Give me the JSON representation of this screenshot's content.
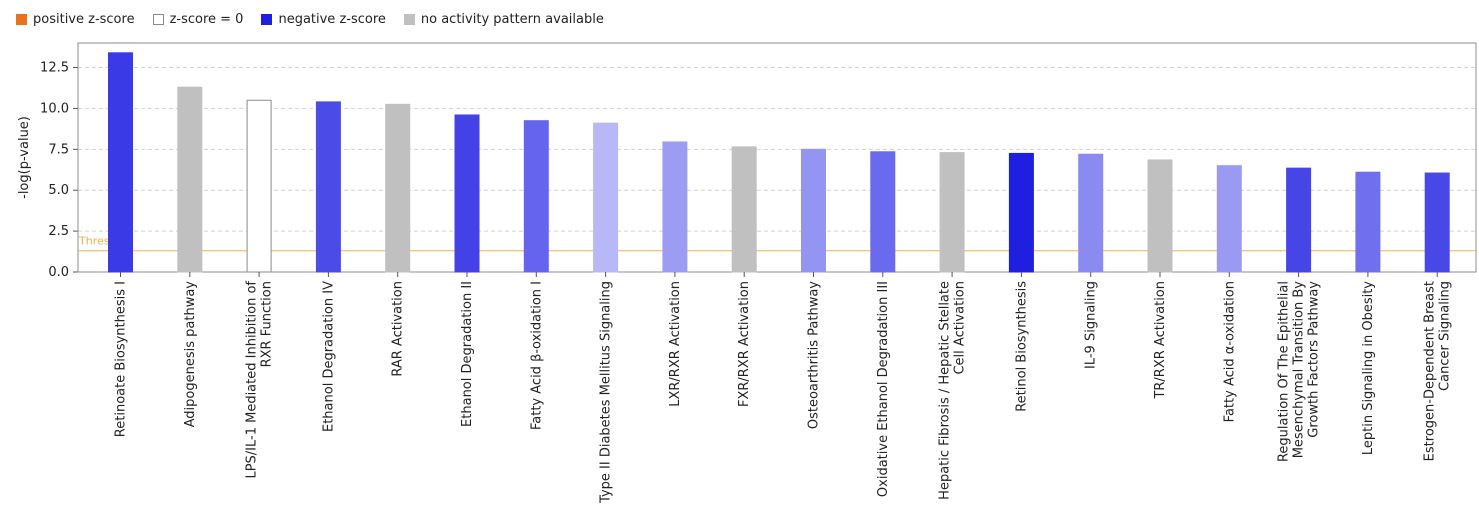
{
  "legend": [
    {
      "label": "positive z-score",
      "color": "#e8731a",
      "border": "#e8731a"
    },
    {
      "label": "z-score = 0",
      "color": "#ffffff",
      "border": "#8a8a8a"
    },
    {
      "label": "negative z-score",
      "color": "#1f1fe0",
      "border": "#1f1fe0"
    },
    {
      "label": "no activity pattern available",
      "color": "#c0c0c0",
      "border": "#c0c0c0"
    }
  ],
  "chart_data": {
    "type": "bar",
    "ylabel": "-log(p-value)",
    "ylim": [
      0,
      14
    ],
    "yticks": [
      "0.0",
      "2.5",
      "5.0",
      "7.5",
      "10.0",
      "12.5"
    ],
    "grid": true,
    "threshold": {
      "label": "Threshold",
      "value": 1.3,
      "color": "#f0b050"
    },
    "categories": [
      [
        "Retinoate Biosynthesis I"
      ],
      [
        "Adipogenesis pathway"
      ],
      [
        "LPS/IL-1 Mediated Inhibition of",
        "RXR Function"
      ],
      [
        "Ethanol Degradation IV"
      ],
      [
        "RAR Activation"
      ],
      [
        "Ethanol Degradation II"
      ],
      [
        "Fatty Acid β-oxidation I"
      ],
      [
        "Type II Diabetes Mellitus Signaling"
      ],
      [
        "LXR/RXR Activation"
      ],
      [
        "FXR/RXR Activation"
      ],
      [
        "Osteoarthritis Pathway"
      ],
      [
        "Oxidative Ethanol Degradation III"
      ],
      [
        "Hepatic Fibrosis / Hepatic Stellate",
        "Cell Activation"
      ],
      [
        "Retinol Biosynthesis"
      ],
      [
        "IL-9 Signaling"
      ],
      [
        "TR/RXR Activation"
      ],
      [
        "Fatty Acid α-oxidation"
      ],
      [
        "Regulation Of The Epithelial",
        "Mesenchymal Transition By",
        "Growth Factors Pathway"
      ],
      [
        "Leptin Signaling in Obesity"
      ],
      [
        "Estrogen-Dependent Breast",
        "Cancer Signaling"
      ]
    ],
    "values": [
      13.4,
      11.3,
      10.5,
      10.4,
      10.25,
      9.6,
      9.25,
      9.1,
      7.95,
      7.65,
      7.5,
      7.35,
      7.3,
      7.25,
      7.2,
      6.85,
      6.5,
      6.35,
      6.1,
      6.05
    ],
    "colors": [
      "#3a3ae6",
      "#c0c0c0",
      "#ffffff",
      "#4b4be8",
      "#c0c0c0",
      "#4242e7",
      "#6464ee",
      "#b8b8f8",
      "#9c9cf3",
      "#c0c0c0",
      "#9494f2",
      "#6a6aef",
      "#c0c0c0",
      "#1f1fe0",
      "#8a8af1",
      "#c0c0c0",
      "#9a9af3",
      "#4646e8",
      "#7070ef",
      "#4848e8"
    ]
  }
}
